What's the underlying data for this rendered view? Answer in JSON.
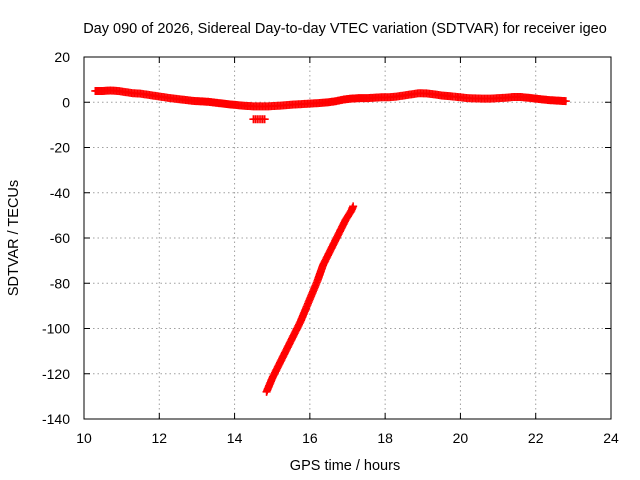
{
  "chart_data": {
    "type": "scatter",
    "title": "Day 090 of 2026, Sidereal Day-to-day VTEC variation (SDTVAR) for receiver igeo",
    "xlabel": "GPS time / hours",
    "ylabel": "SDTVAR / TECUs",
    "xlim": [
      10,
      24
    ],
    "ylim": [
      -140,
      20
    ],
    "xticks": [
      10,
      12,
      14,
      16,
      18,
      20,
      22,
      24
    ],
    "yticks": [
      20,
      0,
      -20,
      -40,
      -60,
      -80,
      -100,
      -120,
      -140
    ],
    "grid": true,
    "series": [
      {
        "color": "#ff0000",
        "marker": "plus",
        "x": [
          10.3,
          10.5,
          10.7,
          10.9,
          11.1,
          11.3,
          11.5,
          11.7,
          11.9,
          12.1,
          12.3,
          12.5,
          12.7,
          12.9,
          13.1,
          13.3,
          13.5,
          13.7,
          13.9,
          14.1,
          14.3,
          14.5,
          14.7,
          14.9,
          15.1,
          15.3,
          15.5,
          15.7,
          15.9,
          16.1,
          16.3,
          16.5,
          16.7,
          16.9,
          17.1,
          17.3,
          17.5,
          17.7,
          17.9,
          18.1,
          18.3,
          18.5,
          18.7,
          18.9,
          19.1,
          19.3,
          19.5,
          19.7,
          20.0,
          20.2,
          20.4,
          20.6,
          20.8,
          21.0,
          21.2,
          21.4,
          21.6,
          21.8,
          22.0,
          22.2,
          22.4,
          22.6,
          22.8
        ],
        "y": [
          5,
          5,
          5.2,
          5,
          4.5,
          4,
          3.8,
          3.3,
          2.8,
          2.3,
          1.8,
          1.4,
          1.0,
          0.6,
          0.4,
          0.2,
          -0.2,
          -0.6,
          -1.0,
          -1.3,
          -1.6,
          -1.8,
          -1.8,
          -1.8,
          -1.6,
          -1.4,
          -1.1,
          -0.9,
          -0.7,
          -0.5,
          -0.3,
          0.0,
          0.5,
          1.2,
          1.6,
          1.8,
          1.8,
          2.0,
          2.2,
          2.2,
          2.5,
          3.0,
          3.5,
          4.0,
          3.9,
          3.5,
          3.0,
          2.7,
          2.2,
          1.8,
          1.7,
          1.6,
          1.6,
          1.8,
          2.0,
          2.3,
          2.3,
          2.0,
          1.6,
          1.2,
          0.9,
          0.7,
          0.5
        ]
      },
      {
        "color": "#ff0000",
        "marker": "plus",
        "x": [
          14.5,
          14.6,
          14.7,
          14.8
        ],
        "y": [
          -7.5,
          -7.5,
          -7.5,
          -7.5
        ]
      },
      {
        "color": "#ff0000",
        "marker": "plus",
        "x": [
          14.85,
          15.0,
          15.15,
          15.3,
          15.45,
          15.6,
          15.75,
          15.9,
          16.05,
          16.2,
          16.35,
          16.5,
          16.65,
          16.8,
          16.95,
          17.1,
          17.15
        ],
        "y": [
          -128,
          -122,
          -117,
          -112,
          -107,
          -102,
          -97,
          -91,
          -85,
          -79,
          -72,
          -67,
          -62,
          -57,
          -52,
          -48,
          -46
        ]
      }
    ]
  }
}
